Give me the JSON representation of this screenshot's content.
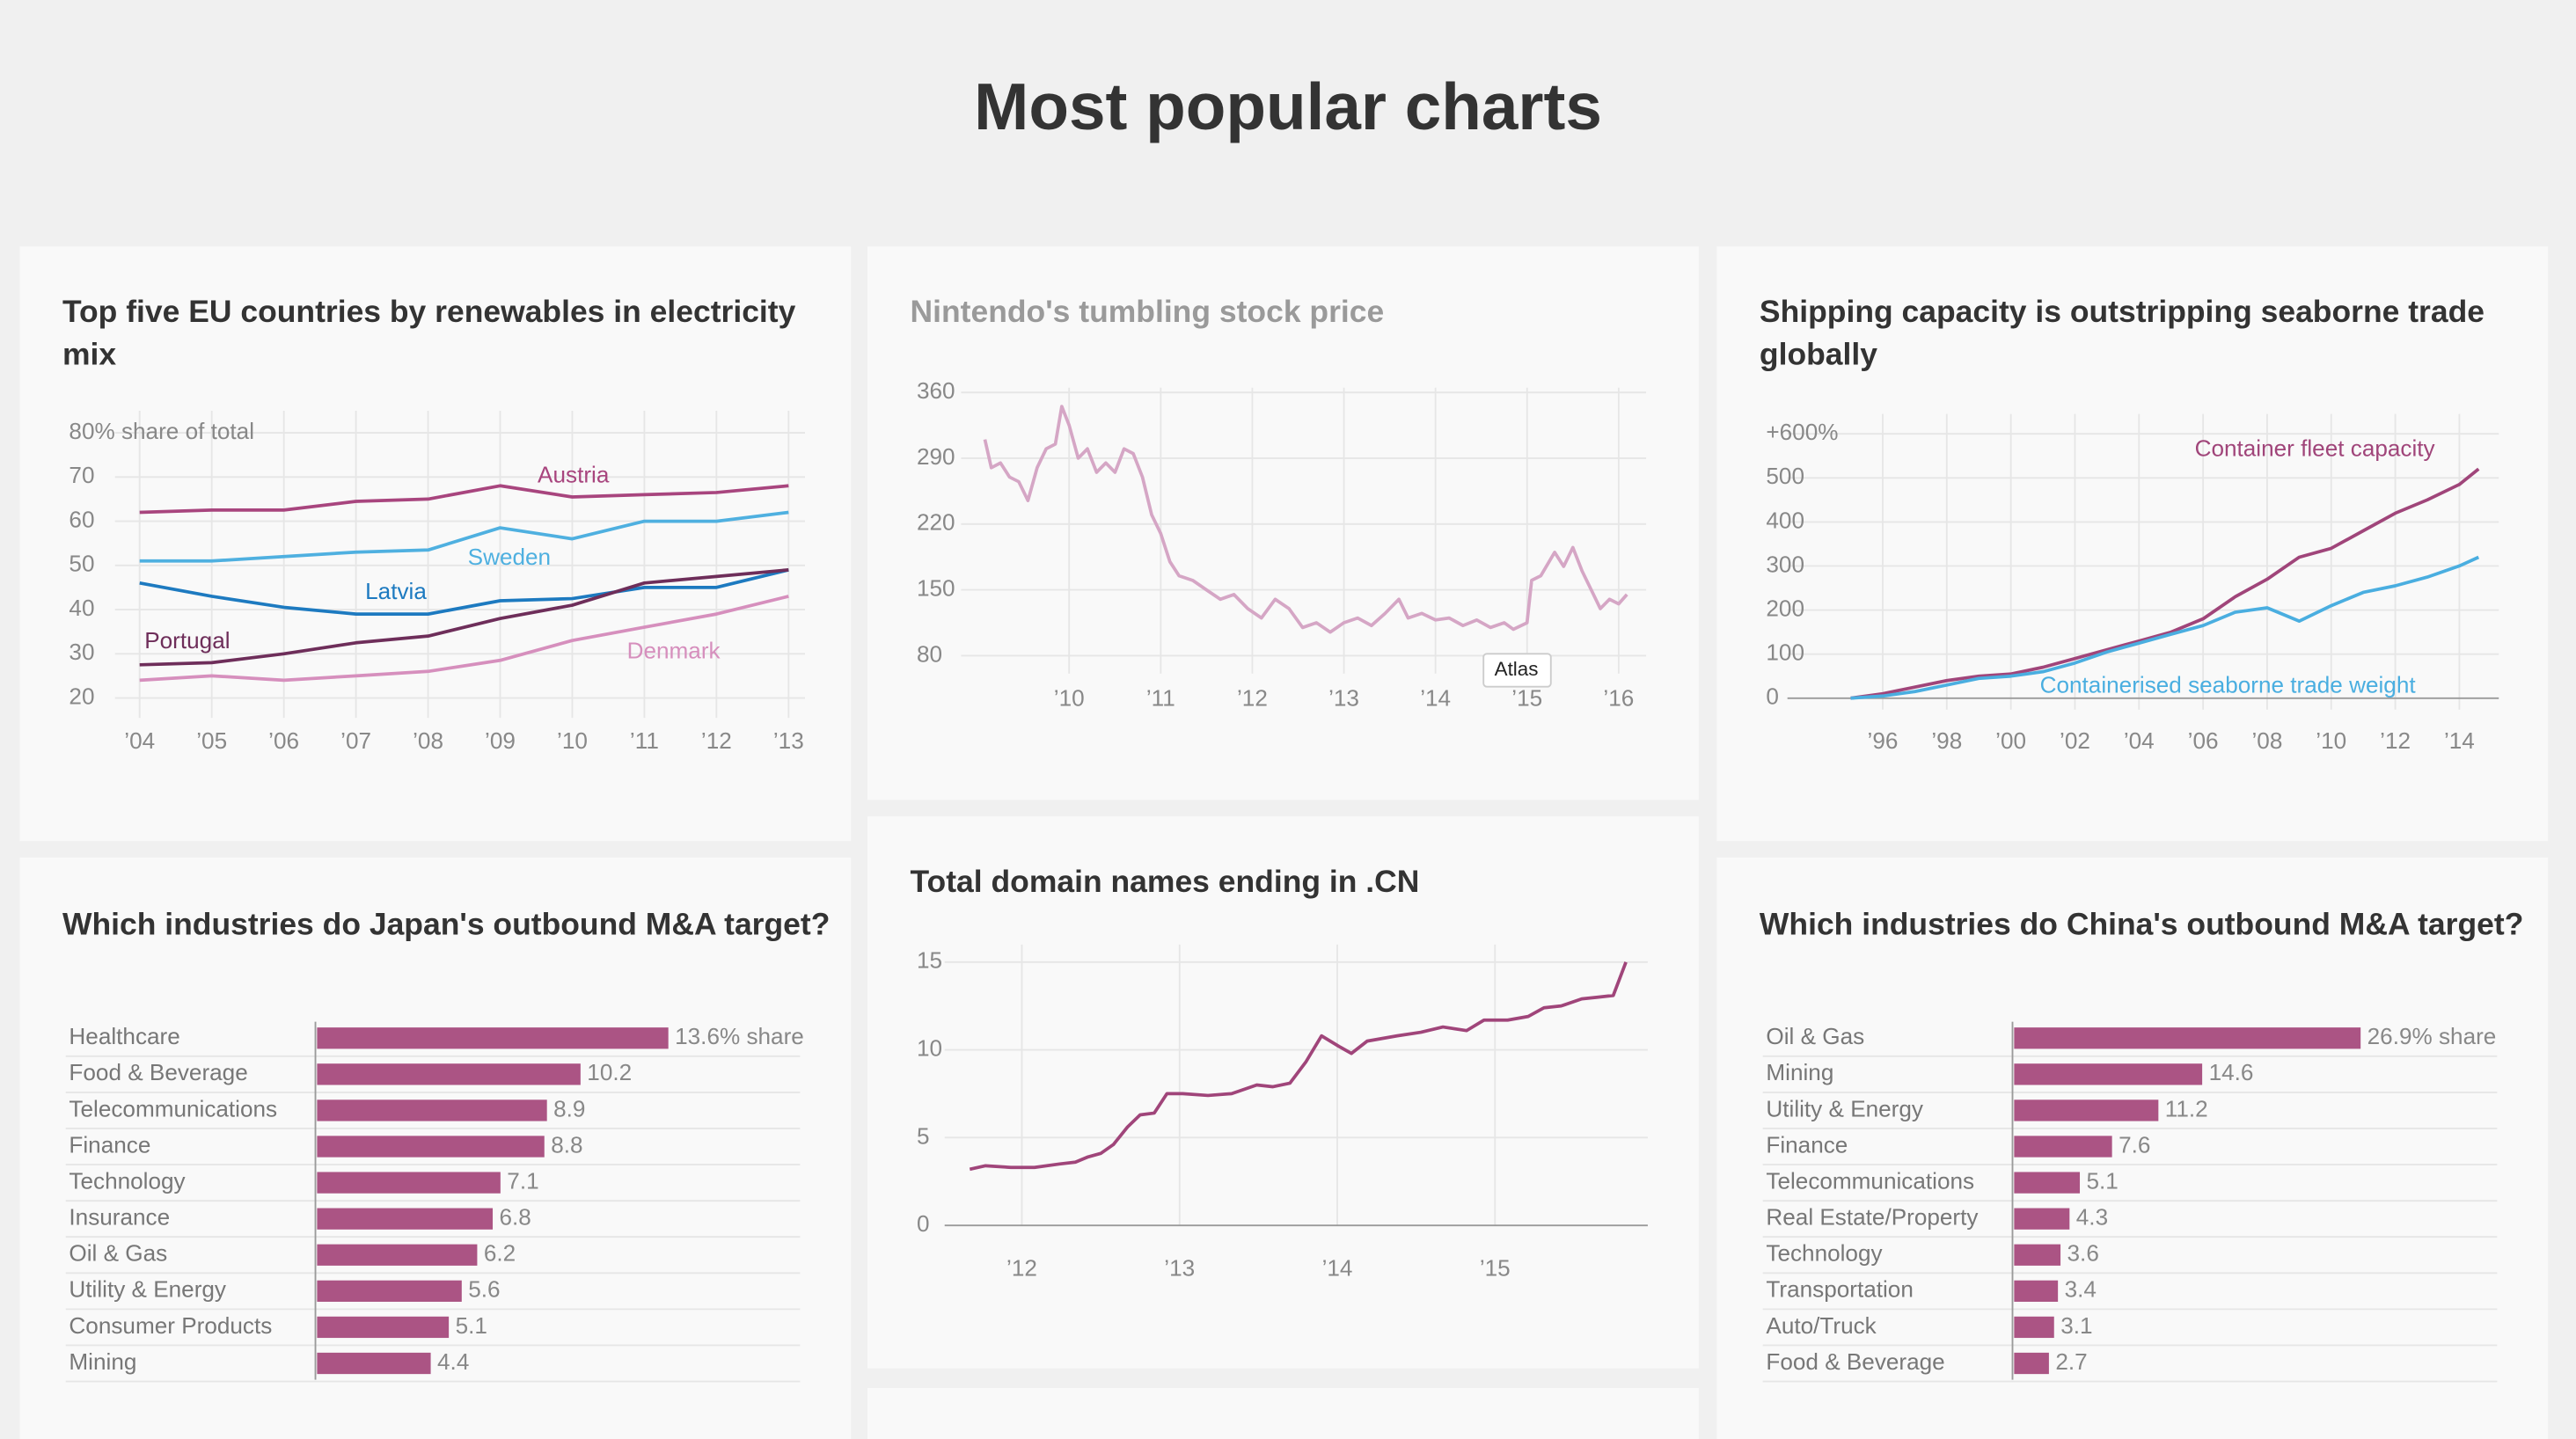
{
  "page": {
    "title": "Most popular charts"
  },
  "chart_data": [
    {
      "type": "line",
      "title": "Top five EU countries by renewables in electricity mix",
      "categories": [
        "’04",
        "’05",
        "’06",
        "’07",
        "’08",
        "’09",
        "’10",
        "’11",
        "’12",
        "’13"
      ],
      "series": [
        {
          "name": "Austria",
          "color": "#a8457e",
          "values": [
            62,
            62.5,
            62.5,
            64.5,
            65,
            68,
            65.5,
            66,
            66.5,
            68
          ]
        },
        {
          "name": "Sweden",
          "color": "#4fb0e0",
          "values": [
            51,
            51,
            52,
            53,
            53.5,
            58.5,
            56,
            60,
            60,
            62
          ]
        },
        {
          "name": "Latvia",
          "color": "#1d7ac0",
          "values": [
            46,
            43,
            40.5,
            39,
            39,
            42,
            42.5,
            45,
            45,
            49
          ]
        },
        {
          "name": "Portugal",
          "color": "#6e2e5a",
          "values": [
            27.5,
            28,
            30,
            32.5,
            34,
            38,
            41,
            46,
            47.5,
            49
          ]
        },
        {
          "name": "Denmark",
          "color": "#d68fbd",
          "values": [
            24,
            25,
            24,
            25,
            26,
            28.5,
            33,
            36,
            39,
            43
          ]
        }
      ],
      "ylim": [
        15.5,
        85
      ],
      "yticks": [
        20,
        30,
        40,
        50,
        60,
        70,
        {
          "value": 80,
          "label": "80% share of total"
        }
      ],
      "grid": true
    },
    {
      "type": "line",
      "title": "Nintendo's tumbling stock price",
      "annotation": "Atlas",
      "x": [
        2009.08,
        2009.15,
        2009.25,
        2009.35,
        2009.45,
        2009.55,
        2009.65,
        2009.75,
        2009.85,
        2009.92,
        2010.0,
        2010.1,
        2010.2,
        2010.3,
        2010.4,
        2010.5,
        2010.6,
        2010.7,
        2010.8,
        2010.9,
        2011.0,
        2011.1,
        2011.2,
        2011.35,
        2011.5,
        2011.65,
        2011.8,
        2011.95,
        2012.1,
        2012.25,
        2012.4,
        2012.55,
        2012.7,
        2012.85,
        2013.0,
        2013.15,
        2013.3,
        2013.45,
        2013.6,
        2013.7,
        2013.85,
        2014.0,
        2014.15,
        2014.3,
        2014.45,
        2014.6,
        2014.75,
        2014.85,
        2015.0,
        2015.05,
        2015.15,
        2015.3,
        2015.4,
        2015.5,
        2015.6,
        2015.7,
        2015.8,
        2015.9,
        2016.0,
        2016.09
      ],
      "series": [
        {
          "name": null,
          "color": "#d5a6c5",
          "values": [
            310,
            280,
            285,
            270,
            265,
            245,
            280,
            300,
            305,
            345,
            325,
            290,
            300,
            275,
            285,
            275,
            300,
            295,
            270,
            230,
            210,
            180,
            165,
            160,
            150,
            140,
            145,
            130,
            120,
            140,
            130,
            110,
            115,
            105,
            115,
            120,
            112,
            125,
            140,
            120,
            125,
            118,
            120,
            112,
            118,
            110,
            115,
            108,
            115,
            160,
            165,
            190,
            175,
            195,
            170,
            150,
            130,
            140,
            135,
            145
          ]
        }
      ],
      "xlim": [
        2008.3,
        2016.3
      ],
      "xticks": [
        {
          "value": 2010,
          "label": "’10"
        },
        {
          "value": 2011,
          "label": "’11"
        },
        {
          "value": 2012,
          "label": "’12"
        },
        {
          "value": 2013,
          "label": "’13"
        },
        {
          "value": 2014,
          "label": "’14"
        },
        {
          "value": 2015,
          "label": "’15"
        },
        {
          "value": 2016,
          "label": "’16"
        }
      ],
      "ylim": [
        61,
        365
      ],
      "yticks": [
        80,
        150,
        220,
        290,
        360
      ],
      "grid": true
    },
    {
      "type": "line",
      "title": "Shipping capacity is outstripping seaborne trade globally",
      "x": [
        1995,
        1996,
        1997,
        1998,
        1999,
        2000,
        2001,
        2002,
        2003,
        2004,
        2005,
        2006,
        2007,
        2008,
        2009,
        2010,
        2011,
        2012,
        2013,
        2014,
        2014.6
      ],
      "series": [
        {
          "name": "Container fleet capacity",
          "color": "#a0457a",
          "values": [
            0,
            10,
            25,
            40,
            50,
            55,
            70,
            90,
            110,
            130,
            150,
            180,
            230,
            270,
            320,
            340,
            380,
            420,
            450,
            485,
            520
          ]
        },
        {
          "name": "Containerised seaborne trade weight",
          "color": "#4aaee0",
          "values": [
            0,
            5,
            15,
            30,
            45,
            50,
            60,
            80,
            105,
            125,
            145,
            165,
            195,
            205,
            175,
            210,
            240,
            255,
            275,
            300,
            320
          ]
        }
      ],
      "xlim": [
        1993,
        2015.2
      ],
      "xticks": [
        {
          "value": 1996,
          "label": "’96"
        },
        {
          "value": 1998,
          "label": "’98"
        },
        {
          "value": 2000,
          "label": "’00"
        },
        {
          "value": 2002,
          "label": "’02"
        },
        {
          "value": 2004,
          "label": "’04"
        },
        {
          "value": 2006,
          "label": "’06"
        },
        {
          "value": 2008,
          "label": "’08"
        },
        {
          "value": 2010,
          "label": "’10"
        },
        {
          "value": 2012,
          "label": "’12"
        },
        {
          "value": 2014,
          "label": "’14"
        }
      ],
      "ylim": [
        -26,
        645
      ],
      "yticks": [
        0,
        100,
        200,
        300,
        400,
        500,
        {
          "value": 600,
          "label": "+600%"
        }
      ],
      "grid": true
    },
    {
      "type": "bar",
      "orientation": "horizontal",
      "title": "Which industries do Japan's outbound M&A target?",
      "color": "#ab5484",
      "categories": [
        "Healthcare",
        "Food & Beverage",
        "Telecommunications",
        "Finance",
        "Technology",
        "Insurance",
        "Oil & Gas",
        "Utility & Energy",
        "Consumer Products",
        "Mining"
      ],
      "values": [
        13.6,
        10.2,
        8.9,
        8.8,
        7.1,
        6.8,
        6.2,
        5.6,
        5.1,
        4.4
      ],
      "value_labels": [
        "13.6% share",
        "10.2",
        "8.9",
        "8.8",
        "7.1",
        "6.8",
        "6.2",
        "5.6",
        "5.1",
        "4.4"
      ],
      "xlim": [
        0,
        18.7
      ]
    },
    {
      "type": "line",
      "title": "Total domain names ending in .CN",
      "x": [
        2011.67,
        2011.77,
        2011.93,
        2012.08,
        2012.24,
        2012.34,
        2012.42,
        2012.5,
        2012.58,
        2012.67,
        2012.75,
        2012.84,
        2012.92,
        2013.02,
        2013.18,
        2013.33,
        2013.49,
        2013.59,
        2013.7,
        2013.8,
        2013.9,
        2014.01,
        2014.09,
        2014.19,
        2014.38,
        2014.53,
        2014.67,
        2014.82,
        2014.93,
        2015.08,
        2015.21,
        2015.31,
        2015.42,
        2015.55,
        2015.65,
        2015.75,
        2015.83
      ],
      "series": [
        {
          "name": null,
          "color": "#a0457a",
          "values": [
            3.2,
            3.4,
            3.3,
            3.3,
            3.5,
            3.6,
            3.9,
            4.1,
            4.6,
            5.6,
            6.3,
            6.4,
            7.5,
            7.5,
            7.4,
            7.5,
            8.0,
            7.9,
            8.1,
            9.3,
            10.8,
            10.2,
            9.8,
            10.5,
            10.8,
            11.0,
            11.3,
            11.1,
            11.7,
            11.7,
            11.9,
            12.4,
            12.5,
            12.9,
            13.0,
            13.1,
            15.0
          ]
        }
      ],
      "xlim": [
        2011.5,
        2016
      ],
      "xticks": [
        {
          "value": 2012,
          "label": "’12"
        },
        {
          "value": 2013,
          "label": "’13"
        },
        {
          "value": 2014,
          "label": "’14"
        },
        {
          "value": 2015,
          "label": "’15"
        }
      ],
      "ylim": [
        0,
        16
      ],
      "yticks": [
        0,
        5,
        10,
        15
      ],
      "grid": true
    },
    {
      "type": "bar",
      "orientation": "horizontal",
      "title": "Which industries do China's outbound M&A target?",
      "color": "#ab5484",
      "categories": [
        "Oil & Gas",
        "Mining",
        "Utility & Energy",
        "Finance",
        "Telecommunications",
        "Real Estate/Property",
        "Technology",
        "Transportation",
        "Auto/Truck",
        "Food & Beverage"
      ],
      "values": [
        26.9,
        14.6,
        11.2,
        7.6,
        5.1,
        4.3,
        3.6,
        3.4,
        3.1,
        2.7
      ],
      "value_labels": [
        "26.9% share",
        "14.6",
        "11.2",
        "7.6",
        "5.1",
        "4.3",
        "3.6",
        "3.4",
        "3.1",
        "2.7"
      ],
      "xlim": [
        0,
        37.5
      ]
    }
  ]
}
